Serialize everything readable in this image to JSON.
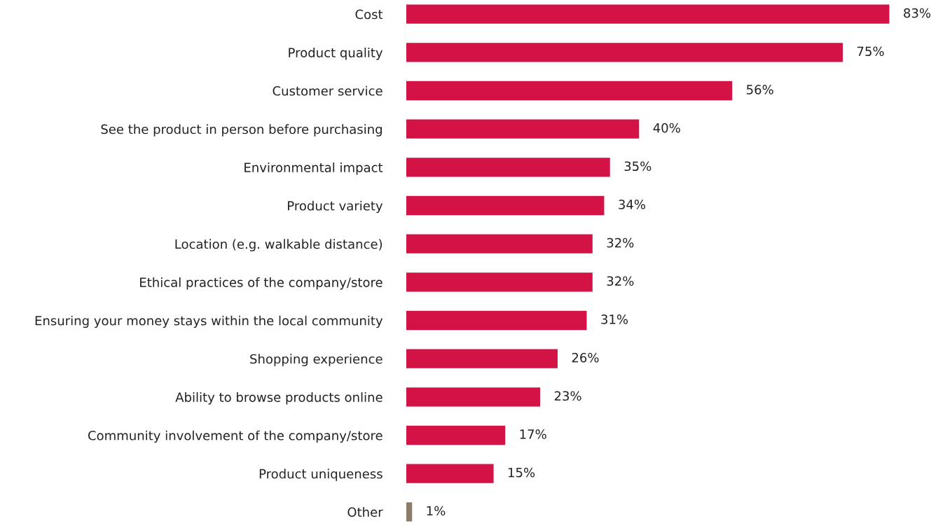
{
  "chart_data": {
    "type": "bar",
    "orientation": "horizontal",
    "categories": [
      "Cost",
      "Product quality",
      "Customer service",
      "See the product in person before purchasing",
      "Environmental impact",
      "Product variety",
      "Location (e.g. walkable distance)",
      "Ethical practices of the company/store",
      "Ensuring your money stays within the local community",
      "Shopping experience",
      "Ability to browse products online",
      "Community involvement of the company/store",
      "Product uniqueness",
      "Other"
    ],
    "values": [
      83,
      75,
      56,
      40,
      35,
      34,
      32,
      32,
      31,
      26,
      23,
      17,
      15,
      1
    ],
    "value_labels": [
      "83%",
      "75%",
      "56%",
      "40%",
      "35%",
      "34%",
      "32%",
      "32%",
      "31%",
      "26%",
      "23%",
      "17%",
      "15%",
      "1%"
    ],
    "colors": [
      "#d31245",
      "#d31245",
      "#d31245",
      "#d31245",
      "#d31245",
      "#d31245",
      "#d31245",
      "#d31245",
      "#d31245",
      "#d31245",
      "#d31245",
      "#d31245",
      "#d31245",
      "#8c7b6b"
    ],
    "grid": false,
    "legend": false
  }
}
